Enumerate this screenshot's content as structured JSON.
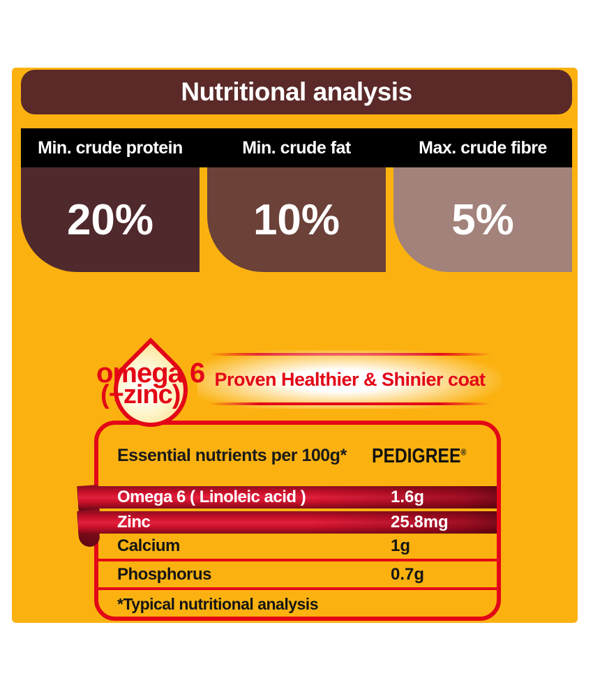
{
  "page": {
    "background": "#ffffff",
    "panel_color": "#FBB210"
  },
  "header": {
    "title": "Nutritional analysis",
    "bg_color": "#5A2928",
    "text_color": "#ffffff"
  },
  "stats": {
    "bar_color": "#000000",
    "columns": [
      {
        "label": "Min. crude protein",
        "value": "20%",
        "block_color": "#4F292C"
      },
      {
        "label": "Min. crude fat",
        "value": "10%",
        "block_color": "#6B4138"
      },
      {
        "label": "Max. crude fibre",
        "value": "5%",
        "block_color": "#A2827A"
      }
    ]
  },
  "badge": {
    "icon": "droplet-icon",
    "line1": "omega 6",
    "line2": "(+zinc)",
    "accent_color": "#E30617"
  },
  "claim": {
    "text": "Proven Healthier & Shinier coat",
    "text_color": "#E30617"
  },
  "table": {
    "border_color": "#E30617",
    "header_left": "Essential nutrients per 100g*",
    "brand": "PEDIGREE",
    "brand_mark": "®",
    "ribbon_color": "#C81029",
    "rows": [
      {
        "label": "Omega 6 ( Linoleic acid )",
        "value": "1.6g"
      },
      {
        "label": "Zinc",
        "value": "25.8mg"
      },
      {
        "label": "Calcium",
        "value": "1g"
      },
      {
        "label": "Phosphorus",
        "value": "0.7g"
      }
    ],
    "footnote": "*Typical nutritional analysis"
  }
}
